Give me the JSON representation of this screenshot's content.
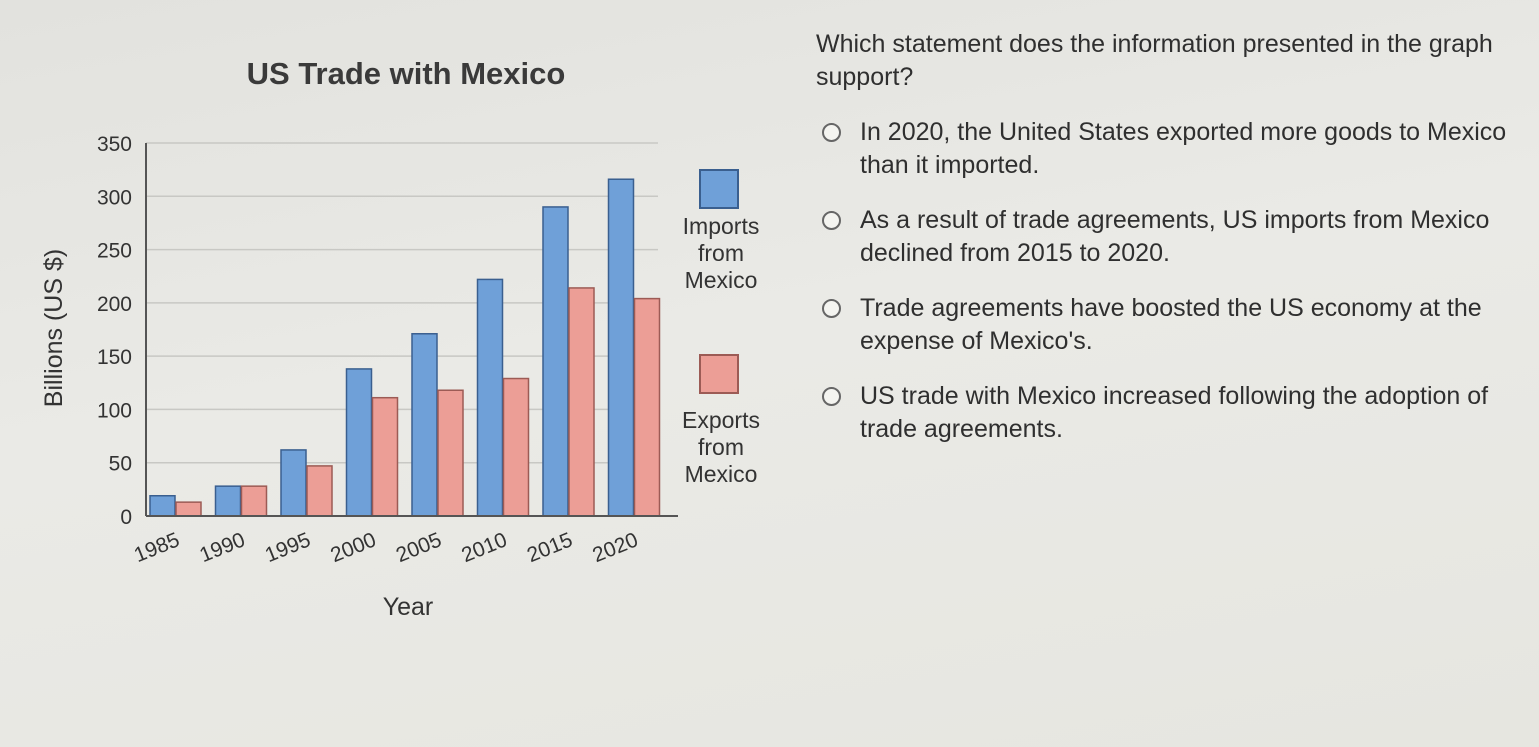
{
  "chart_data": {
    "type": "bar",
    "title": "US Trade with Mexico",
    "xlabel": "Year",
    "ylabel": "Billions (US $)",
    "ylim": [
      0,
      350
    ],
    "yticks": [
      "350",
      "300",
      "250",
      "200",
      "150",
      "100",
      "50",
      "0"
    ],
    "categories": [
      "1985",
      "1990",
      "1995",
      "2000",
      "2005",
      "2010",
      "2015",
      "2020"
    ],
    "series": [
      {
        "name": "Imports from Mexico",
        "legend_lines": [
          "Imports",
          "from",
          "Mexico"
        ],
        "color": "#6fa0d8",
        "values": [
          19,
          28,
          62,
          138,
          171,
          222,
          290,
          316
        ]
      },
      {
        "name": "Exports from Mexico",
        "legend_lines": [
          "Exports",
          "from",
          "Mexico"
        ],
        "color": "#ec9e96",
        "values": [
          13,
          28,
          47,
          111,
          118,
          129,
          214,
          204
        ]
      }
    ],
    "grid": true,
    "legend_position": "right"
  },
  "question": {
    "prompt": "Which statement does the information presented in the graph support?",
    "options": [
      "In 2020, the United States exported more goods to Mexico than it imported.",
      "As a result of trade agreements, US imports from Mexico declined from 2015 to 2020.",
      "Trade agreements have boosted the US economy at the expense of Mexico's.",
      "US trade with Mexico increased following the adoption of trade agreements."
    ]
  }
}
